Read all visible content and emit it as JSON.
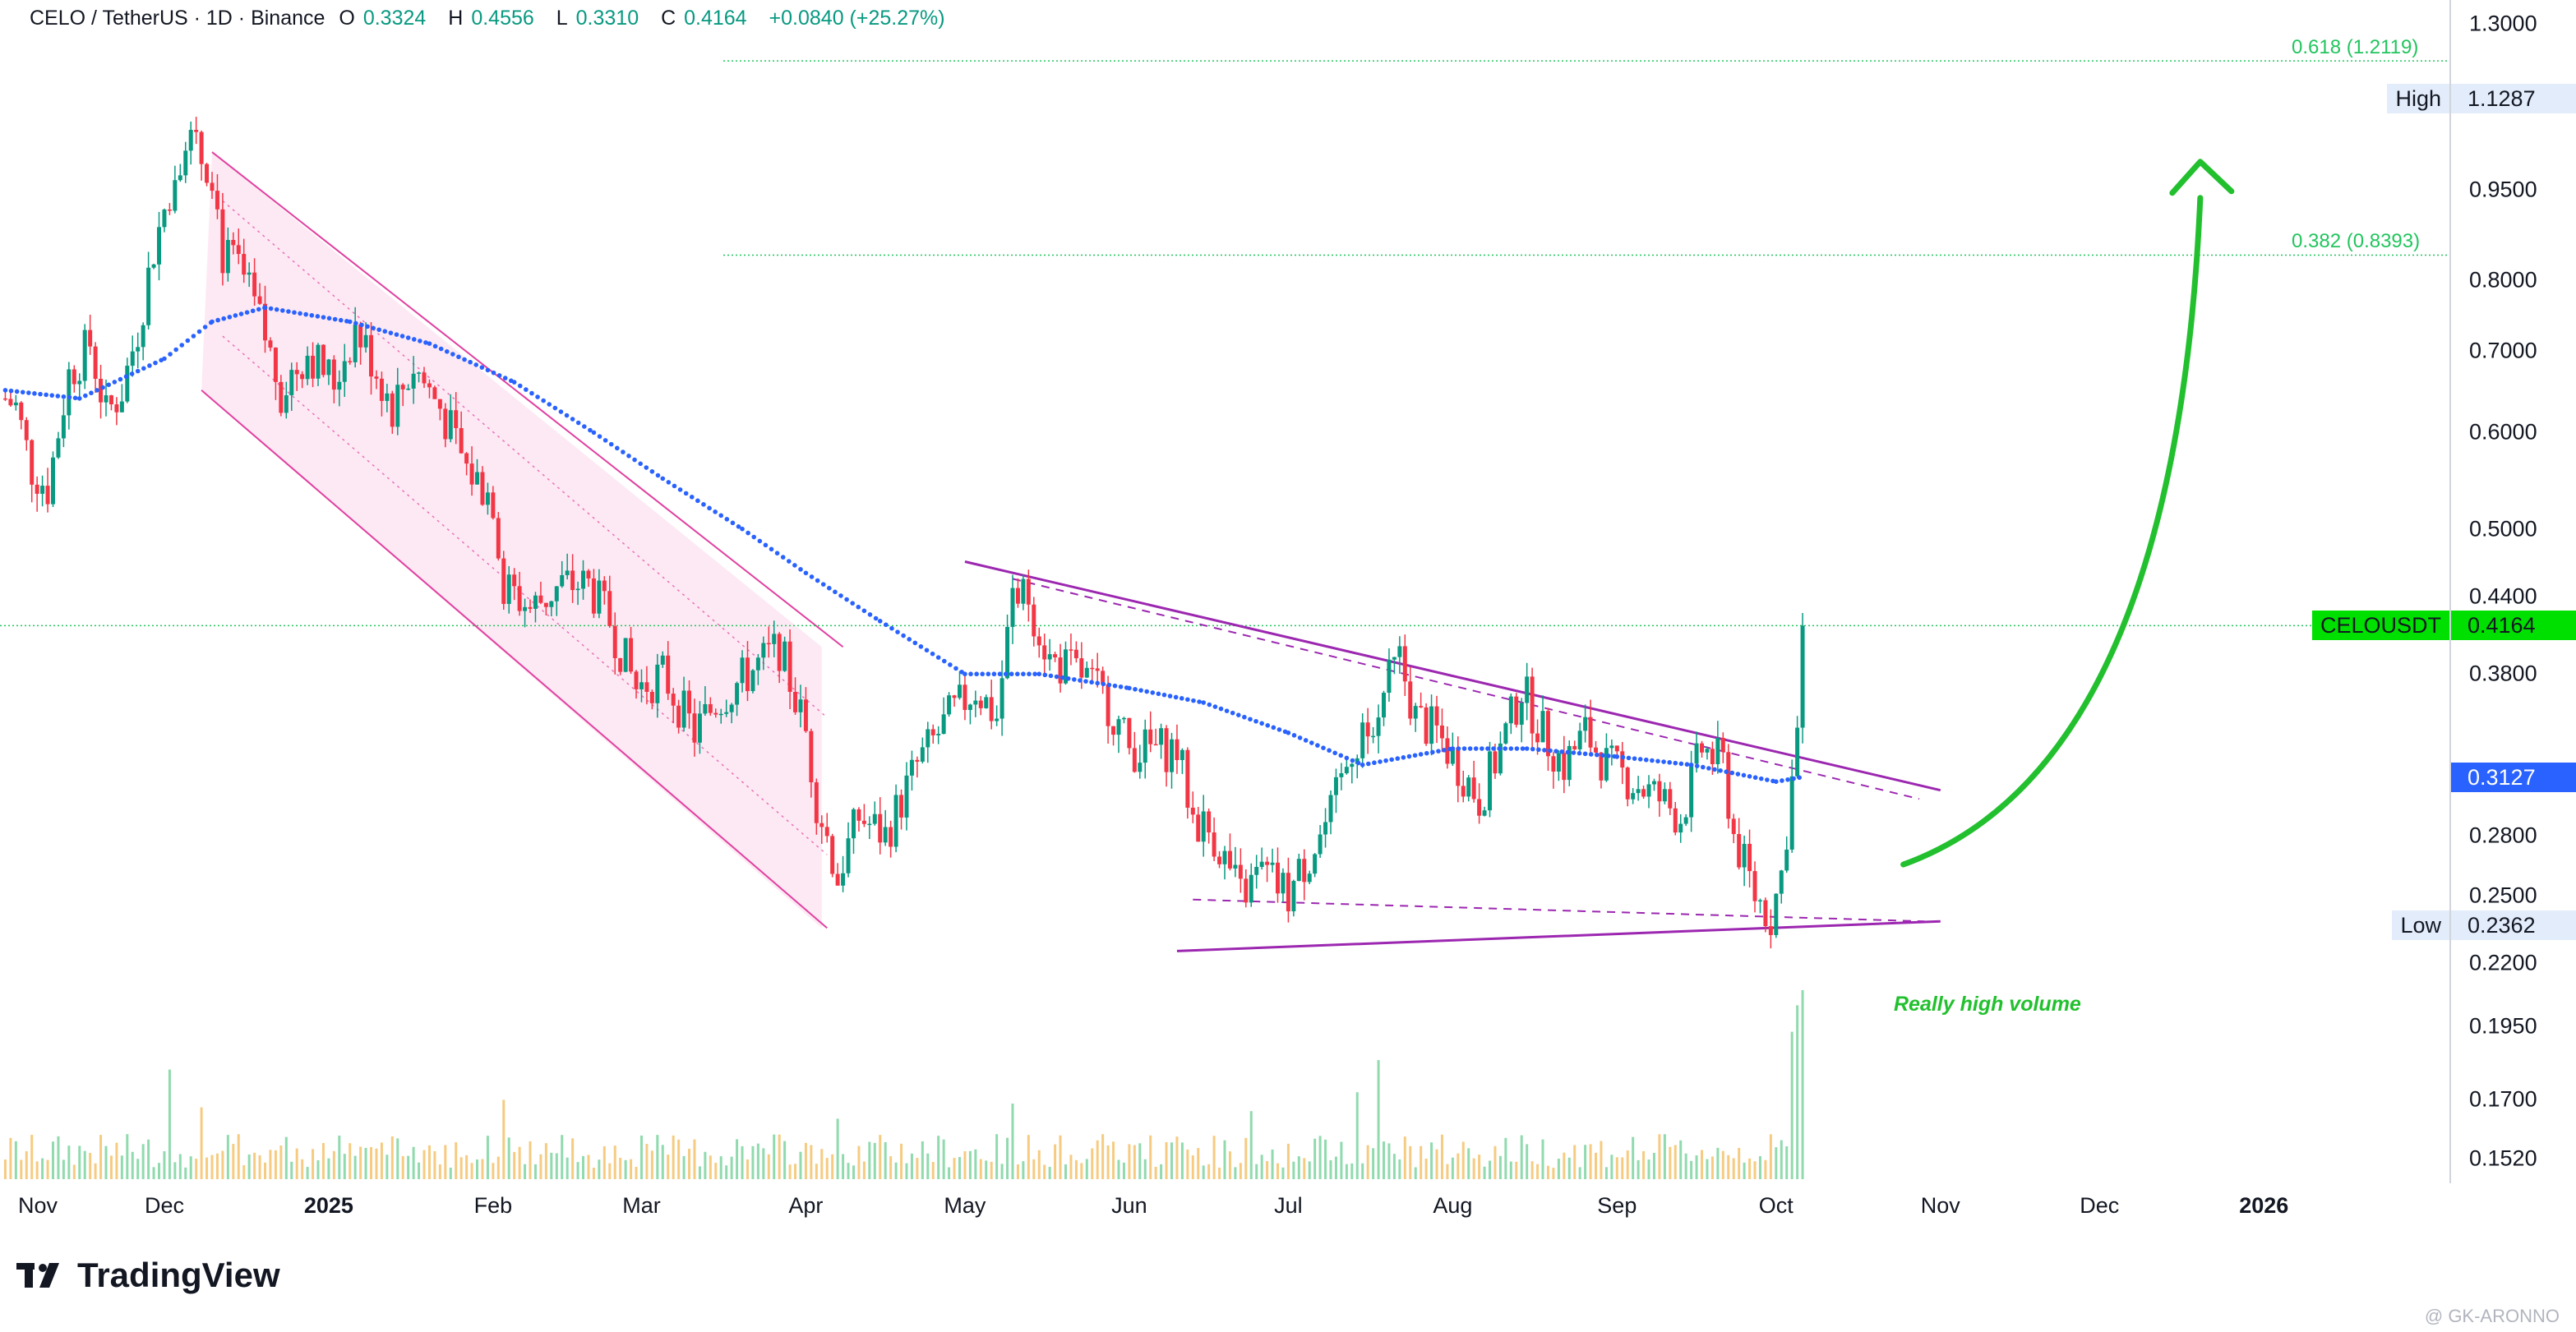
{
  "header": {
    "symbol": "CELO / TetherUS · 1D · Binance",
    "o_label": "O",
    "o": "0.3324",
    "h_label": "H",
    "h": "0.4556",
    "l_label": "L",
    "l": "0.3310",
    "c_label": "C",
    "c": "0.4164",
    "change": "+0.0840 (+25.27%)"
  },
  "chart_data": {
    "type": "candlestick",
    "symbol": "CELOUSDT",
    "timeframe": "1D",
    "y_scale": "log",
    "ylim": [
      0.145,
      1.36
    ],
    "price_ticks": [
      "1.3000",
      "0.9500",
      "0.8000",
      "0.7000",
      "0.6000",
      "0.5000",
      "0.4400",
      "0.3800",
      "0.2800",
      "0.2500",
      "0.2200",
      "0.1950",
      "0.1700",
      "0.1520"
    ],
    "time_ticks": [
      {
        "label": "Nov",
        "date": "2024-11-01"
      },
      {
        "label": "Dec",
        "date": "2024-12-01"
      },
      {
        "label": "2025",
        "date": "2025-01-01",
        "bold": true
      },
      {
        "label": "Feb",
        "date": "2025-02-01"
      },
      {
        "label": "Mar",
        "date": "2025-03-01"
      },
      {
        "label": "Apr",
        "date": "2025-04-01"
      },
      {
        "label": "May",
        "date": "2025-05-01"
      },
      {
        "label": "Jun",
        "date": "2025-06-01"
      },
      {
        "label": "Jul",
        "date": "2025-07-01"
      },
      {
        "label": "Aug",
        "date": "2025-08-01"
      },
      {
        "label": "Sep",
        "date": "2025-09-01"
      },
      {
        "label": "Oct",
        "date": "2025-10-01"
      },
      {
        "label": "Nov",
        "date": "2025-11-01"
      },
      {
        "label": "Dec",
        "date": "2025-12-01"
      },
      {
        "label": "2026",
        "date": "2026-01-01",
        "bold": true
      }
    ],
    "x_range": [
      "2024-10-31",
      "2026-02-05"
    ],
    "close_path": [
      [
        "2024-11-01",
        0.64
      ],
      [
        "2024-11-03",
        0.63
      ],
      [
        "2024-11-06",
        0.56
      ],
      [
        "2024-11-09",
        0.54
      ],
      [
        "2024-11-13",
        0.67
      ],
      [
        "2024-11-17",
        0.71
      ],
      [
        "2024-11-20",
        0.62
      ],
      [
        "2024-11-23",
        0.65
      ],
      [
        "2024-11-26",
        0.73
      ],
      [
        "2024-11-29",
        0.85
      ],
      [
        "2024-12-02",
        0.95
      ],
      [
        "2024-12-05",
        1.06
      ],
      [
        "2024-12-07",
        1.02
      ],
      [
        "2024-12-10",
        0.99
      ],
      [
        "2024-12-12",
        0.84
      ],
      [
        "2024-12-15",
        0.82
      ],
      [
        "2024-12-19",
        0.74
      ],
      [
        "2024-12-23",
        0.65
      ],
      [
        "2024-12-28",
        0.7
      ],
      [
        "2025-01-02",
        0.66
      ],
      [
        "2025-01-06",
        0.73
      ],
      [
        "2025-01-09",
        0.69
      ],
      [
        "2025-01-13",
        0.63
      ],
      [
        "2025-01-17",
        0.68
      ],
      [
        "2025-01-22",
        0.63
      ],
      [
        "2025-01-27",
        0.56
      ],
      [
        "2025-02-01",
        0.53
      ],
      [
        "2025-02-03",
        0.45
      ],
      [
        "2025-02-08",
        0.43
      ],
      [
        "2025-02-14",
        0.45
      ],
      [
        "2025-02-19",
        0.45
      ],
      [
        "2025-02-23",
        0.42
      ],
      [
        "2025-02-28",
        0.37
      ],
      [
        "2025-03-05",
        0.38
      ],
      [
        "2025-03-11",
        0.34
      ],
      [
        "2025-03-15",
        0.36
      ],
      [
        "2025-03-21",
        0.38
      ],
      [
        "2025-03-27",
        0.4
      ],
      [
        "2025-04-01",
        0.34
      ],
      [
        "2025-04-03",
        0.3
      ],
      [
        "2025-04-07",
        0.26
      ],
      [
        "2025-04-11",
        0.29
      ],
      [
        "2025-04-16",
        0.28
      ],
      [
        "2025-04-22",
        0.32
      ],
      [
        "2025-04-28",
        0.35
      ],
      [
        "2025-05-03",
        0.37
      ],
      [
        "2025-05-07",
        0.35
      ],
      [
        "2025-05-10",
        0.44
      ],
      [
        "2025-05-13",
        0.44
      ],
      [
        "2025-05-17",
        0.39
      ],
      [
        "2025-05-23",
        0.38
      ],
      [
        "2025-05-28",
        0.36
      ],
      [
        "2025-06-01",
        0.33
      ],
      [
        "2025-06-05",
        0.33
      ],
      [
        "2025-06-10",
        0.33
      ],
      [
        "2025-06-13",
        0.29
      ],
      [
        "2025-06-17",
        0.28
      ],
      [
        "2025-06-22",
        0.25
      ],
      [
        "2025-06-26",
        0.26
      ],
      [
        "2025-07-01",
        0.25
      ],
      [
        "2025-07-05",
        0.27
      ],
      [
        "2025-07-09",
        0.29
      ],
      [
        "2025-07-13",
        0.33
      ],
      [
        "2025-07-18",
        0.36
      ],
      [
        "2025-07-22",
        0.39
      ],
      [
        "2025-07-25",
        0.35
      ],
      [
        "2025-07-29",
        0.34
      ],
      [
        "2025-08-02",
        0.32
      ],
      [
        "2025-08-06",
        0.3
      ],
      [
        "2025-08-10",
        0.33
      ],
      [
        "2025-08-14",
        0.37
      ],
      [
        "2025-08-18",
        0.34
      ],
      [
        "2025-08-22",
        0.32
      ],
      [
        "2025-08-26",
        0.34
      ],
      [
        "2025-08-30",
        0.32
      ],
      [
        "2025-09-04",
        0.31
      ],
      [
        "2025-09-09",
        0.3
      ],
      [
        "2025-09-13",
        0.29
      ],
      [
        "2025-09-17",
        0.33
      ],
      [
        "2025-09-21",
        0.32
      ],
      [
        "2025-09-23",
        0.28
      ],
      [
        "2025-09-27",
        0.25
      ],
      [
        "2025-09-30",
        0.24
      ],
      [
        "2025-10-02",
        0.26
      ],
      [
        "2025-10-04",
        0.31
      ],
      [
        "2025-10-05",
        0.34
      ],
      [
        "2025-10-06",
        0.4164
      ]
    ],
    "sma": {
      "color": "#2962ff",
      "path": [
        [
          "2024-11-01",
          0.65
        ],
        [
          "2024-11-15",
          0.64
        ],
        [
          "2024-12-01",
          0.69
        ],
        [
          "2024-12-10",
          0.74
        ],
        [
          "2024-12-20",
          0.76
        ],
        [
          "2025-01-05",
          0.74
        ],
        [
          "2025-01-20",
          0.71
        ],
        [
          "2025-02-05",
          0.66
        ],
        [
          "2025-02-20",
          0.6
        ],
        [
          "2025-03-05",
          0.55
        ],
        [
          "2025-03-20",
          0.5
        ],
        [
          "2025-04-01",
          0.46
        ],
        [
          "2025-04-15",
          0.42
        ],
        [
          "2025-05-01",
          0.38
        ],
        [
          "2025-05-15",
          0.38
        ],
        [
          "2025-06-01",
          0.37
        ],
        [
          "2025-06-15",
          0.36
        ],
        [
          "2025-07-01",
          0.34
        ],
        [
          "2025-07-15",
          0.32
        ],
        [
          "2025-08-01",
          0.33
        ],
        [
          "2025-08-15",
          0.33
        ],
        [
          "2025-09-01",
          0.325
        ],
        [
          "2025-09-15",
          0.32
        ],
        [
          "2025-10-01",
          0.31
        ],
        [
          "2025-10-06",
          0.3127
        ]
      ]
    },
    "volume_scale_max": 100,
    "volume_spikes": [
      {
        "date": "2024-12-02",
        "value": 58,
        "up": true
      },
      {
        "date": "2024-12-08",
        "value": 38,
        "up": false
      },
      {
        "date": "2025-02-03",
        "value": 42,
        "up": false
      },
      {
        "date": "2025-04-07",
        "value": 32,
        "up": true
      },
      {
        "date": "2025-05-10",
        "value": 40,
        "up": true
      },
      {
        "date": "2025-06-24",
        "value": 36,
        "up": true
      },
      {
        "date": "2025-07-14",
        "value": 46,
        "up": true
      },
      {
        "date": "2025-07-18",
        "value": 63,
        "up": true
      },
      {
        "date": "2025-10-04",
        "value": 78,
        "up": true
      },
      {
        "date": "2025-10-05",
        "value": 92,
        "up": true
      },
      {
        "date": "2025-10-06",
        "value": 100,
        "up": true
      }
    ],
    "price_tags": [
      {
        "label": "High",
        "value": "1.1287",
        "price": 1.1287
      },
      {
        "label": "CELOUSDT",
        "value": "0.4164",
        "price": 0.4164
      },
      {
        "label": "",
        "value": "0.3127",
        "price": 0.3127
      },
      {
        "label": "Low",
        "value": "0.2362",
        "price": 0.2362
      }
    ],
    "fib_levels": [
      {
        "label": "0.618 (1.2119)",
        "price": 1.2119
      },
      {
        "label": "0.382 (0.8393)",
        "price": 0.8393
      }
    ],
    "current_price_line": 0.4164,
    "annotations": [
      "Really high volume"
    ],
    "colors": {
      "up": "#089981",
      "down": "#f23645",
      "fib": "#22c55e",
      "channel": "#e040a0",
      "trend": "#9c27b0",
      "arrow": "#22c02e",
      "sma": "#2962ff"
    }
  },
  "branding": {
    "logo_text": "TradingView",
    "watermark": "@ GK-ARONNO"
  }
}
